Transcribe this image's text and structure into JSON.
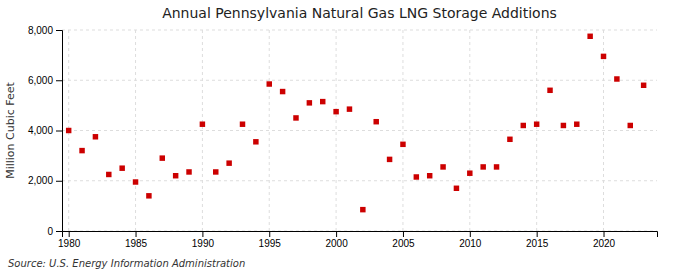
{
  "chart_data": {
    "type": "scatter",
    "title": "Annual Pennsylvania Natural Gas LNG Storage Additions",
    "ylabel": "Million Cubic Feet",
    "annotations": [
      "Source: U.S. Energy Information Administration"
    ],
    "x": [
      1980,
      1981,
      1982,
      1983,
      1984,
      1985,
      1986,
      1987,
      1988,
      1989,
      1990,
      1991,
      1992,
      1993,
      1994,
      1995,
      1996,
      1997,
      1998,
      1999,
      2000,
      2001,
      2002,
      2003,
      2004,
      2005,
      2006,
      2007,
      2008,
      2009,
      2010,
      2011,
      2012,
      2013,
      2014,
      2015,
      2016,
      2017,
      2018,
      2019,
      2020,
      2021,
      2022,
      2023
    ],
    "values": [
      4000,
      3200,
      3750,
      2250,
      2500,
      1950,
      1400,
      2900,
      2200,
      2350,
      4250,
      2350,
      2700,
      4250,
      3550,
      5850,
      5550,
      4500,
      5100,
      5150,
      4750,
      4850,
      850,
      4350,
      2850,
      3450,
      2150,
      2200,
      2550,
      1700,
      2300,
      2550,
      2550,
      3650,
      4200,
      4250,
      5600,
      4200,
      4250,
      7750,
      6950,
      6050,
      4200,
      5800
    ],
    "color": "#cc0000",
    "marker": "square",
    "xlim": [
      1979.5,
      2024
    ],
    "ylim": [
      0,
      8000
    ],
    "xticks": [
      1980,
      1985,
      1990,
      1995,
      2000,
      2005,
      2010,
      2015,
      2020
    ],
    "yticks": [
      0,
      {
        "value": 2000,
        "label": "2,000"
      },
      {
        "value": 4000,
        "label": "4,000"
      },
      {
        "value": 6000,
        "label": "6,000"
      },
      {
        "value": 8000,
        "label": "8,000"
      }
    ],
    "grid": true
  }
}
